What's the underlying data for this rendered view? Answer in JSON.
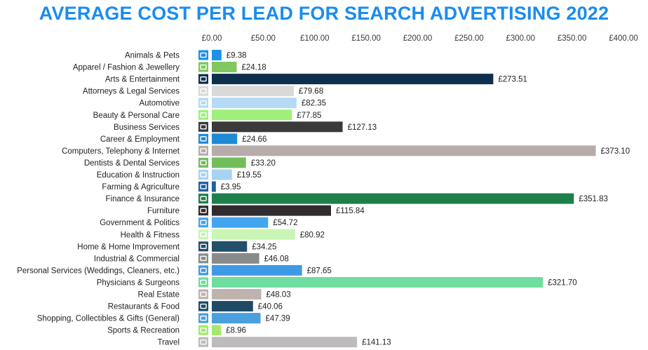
{
  "title": "AVERAGE COST PER LEAD FOR SEARCH ADVERTISING 2022",
  "chart_data": {
    "type": "bar",
    "orientation": "horizontal",
    "title": "AVERAGE COST PER LEAD FOR SEARCH ADVERTISING 2022",
    "xlim": [
      0,
      400
    ],
    "x_ticks": [
      "£0.00",
      "£50.00",
      "£100.00",
      "£150.00",
      "£200.00",
      "£250.00",
      "£300.00",
      "£350.00",
      "£400.00"
    ],
    "x_tick_values": [
      0,
      50,
      100,
      150,
      200,
      250,
      300,
      350,
      400
    ],
    "axis_position": "top",
    "grid": false,
    "categories": [
      "Animals & Pets",
      "Apparel / Fashion & Jewellery",
      "Arts & Entertainment",
      "Attorneys & Legal Services",
      "Automotive",
      "Beauty & Personal Care",
      "Business Services",
      "Career & Employment",
      "Computers, Telephony & Internet",
      "Dentists & Dental Services",
      "Education & Instruction",
      "Farming & Agriculture",
      "Finance & Insurance",
      "Furniture",
      "Government & Politics",
      "Health & Fitness",
      "Home & Home Improvement",
      "Industrial & Commercial",
      "Personal Services (Weddings, Cleaners, etc.)",
      "Physicians & Surgeons",
      "Real Estate",
      "Restaurants & Food",
      "Shopping, Collectibles & Gifts (General)",
      "Sports & Recreation",
      "Travel"
    ],
    "values": [
      9.38,
      24.18,
      273.51,
      79.68,
      82.35,
      77.85,
      127.13,
      24.66,
      373.1,
      33.2,
      19.55,
      3.95,
      351.83,
      115.84,
      54.72,
      80.92,
      34.25,
      46.08,
      87.65,
      321.7,
      48.03,
      40.06,
      47.39,
      8.96,
      141.13
    ],
    "value_labels": [
      "£9.38",
      "£24.18",
      "£273.51",
      "£79.68",
      "£82.35",
      "£77.85",
      "£127.13",
      "£24.66",
      "£373.10",
      "£33.20",
      "£19.55",
      "£3.95",
      "£351.83",
      "£115.84",
      "£54.72",
      "£80.92",
      "£34.25",
      "£46.08",
      "£87.65",
      "£321.70",
      "£48.03",
      "£40.06",
      "£47.39",
      "£8.96",
      "£141.13"
    ],
    "colors": [
      "#1e90e8",
      "#7ec85e",
      "#0f2f4f",
      "#d9d9d9",
      "#b5daf5",
      "#9ef07a",
      "#3a3a3a",
      "#1e8ad6",
      "#b7acaa",
      "#72bd5a",
      "#a7d2f2",
      "#1f5f9f",
      "#1e7f4a",
      "#302b2e",
      "#42a5f0",
      "#c9f5b5",
      "#234f6a",
      "#8a8a8a",
      "#3f9ae6",
      "#6fdd9f",
      "#bfb3b0",
      "#1f4a66",
      "#4a9fdf",
      "#a6e86e",
      "#bdbbbb"
    ],
    "icons": [
      "paw-icon",
      "hanger-icon",
      "theater-masks-icon",
      "scales-icon",
      "car-icon",
      "lotus-icon",
      "bar-chart-icon",
      "people-icon",
      "computer-icon",
      "tooth-icon",
      "graduation-cap-icon",
      "tractor-icon",
      "calculator-icon",
      "armchair-icon",
      "capitol-icon",
      "heart-icon",
      "house-icon",
      "factory-icon",
      "person-icon",
      "stethoscope-icon",
      "building-icon",
      "plate-icon",
      "shopping-bag-icon",
      "ball-icon",
      "airplane-icon"
    ]
  }
}
